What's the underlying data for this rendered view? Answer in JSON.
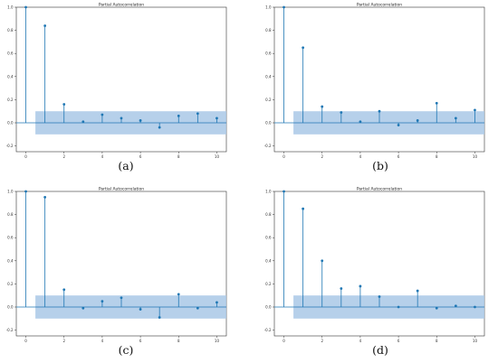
{
  "chart_data": [
    {
      "type": "stem",
      "title": "Partial Autocorrelation",
      "panel_label": "(a)",
      "x": [
        0,
        1,
        2,
        3,
        4,
        5,
        6,
        7,
        8,
        9,
        10
      ],
      "values": [
        1.0,
        0.84,
        0.16,
        0.01,
        0.07,
        0.04,
        0.02,
        -0.04,
        0.06,
        0.08,
        0.04
      ],
      "ci": [
        -0.1,
        0.1
      ],
      "xticks": [
        0,
        2,
        4,
        6,
        8,
        10
      ],
      "yticks": [
        -0.2,
        0.0,
        0.2,
        0.4,
        0.6,
        0.8,
        1.0
      ],
      "xlim": [
        -0.5,
        10.5
      ],
      "ylim": [
        -0.25,
        1.0
      ]
    },
    {
      "type": "stem",
      "title": "Partial Autocorrelation",
      "panel_label": "(b)",
      "x": [
        0,
        1,
        2,
        3,
        4,
        5,
        6,
        7,
        8,
        9,
        10
      ],
      "values": [
        1.0,
        0.65,
        0.14,
        0.09,
        0.01,
        0.1,
        -0.02,
        0.02,
        0.17,
        0.04,
        0.11
      ],
      "ci": [
        -0.1,
        0.1
      ],
      "xticks": [
        0,
        2,
        4,
        6,
        8,
        10
      ],
      "yticks": [
        -0.2,
        0.0,
        0.2,
        0.4,
        0.6,
        0.8,
        1.0
      ],
      "xlim": [
        -0.5,
        10.5
      ],
      "ylim": [
        -0.25,
        1.0
      ]
    },
    {
      "type": "stem",
      "title": "Partial Autocorrelation",
      "panel_label": "(c)",
      "x": [
        0,
        1,
        2,
        3,
        4,
        5,
        6,
        7,
        8,
        9,
        10
      ],
      "values": [
        1.0,
        0.95,
        0.15,
        -0.01,
        0.05,
        0.08,
        -0.02,
        -0.09,
        0.11,
        -0.01,
        0.04
      ],
      "ci": [
        -0.1,
        0.1
      ],
      "xticks": [
        0,
        2,
        4,
        6,
        8,
        10
      ],
      "yticks": [
        -0.2,
        0.0,
        0.2,
        0.4,
        0.6,
        0.8,
        1.0
      ],
      "xlim": [
        -0.5,
        10.5
      ],
      "ylim": [
        -0.25,
        1.0
      ]
    },
    {
      "type": "stem",
      "title": "Partial Autocorrelation",
      "panel_label": "(d)",
      "x": [
        0,
        1,
        2,
        3,
        4,
        5,
        6,
        7,
        8,
        9,
        10
      ],
      "values": [
        1.0,
        0.85,
        0.4,
        0.16,
        0.18,
        0.09,
        0.0,
        0.14,
        -0.01,
        0.01,
        0.0
      ],
      "ci": [
        -0.1,
        0.1
      ],
      "xticks": [
        0,
        2,
        4,
        6,
        8,
        10
      ],
      "yticks": [
        -0.2,
        0.0,
        0.2,
        0.4,
        0.6,
        0.8,
        1.0
      ],
      "xlim": [
        -0.5,
        10.5
      ],
      "ylim": [
        -0.25,
        1.0
      ]
    }
  ],
  "colors": {
    "stem": "#1f77b4",
    "confidence_band": "#a9c8e6",
    "axes": "#333333"
  }
}
